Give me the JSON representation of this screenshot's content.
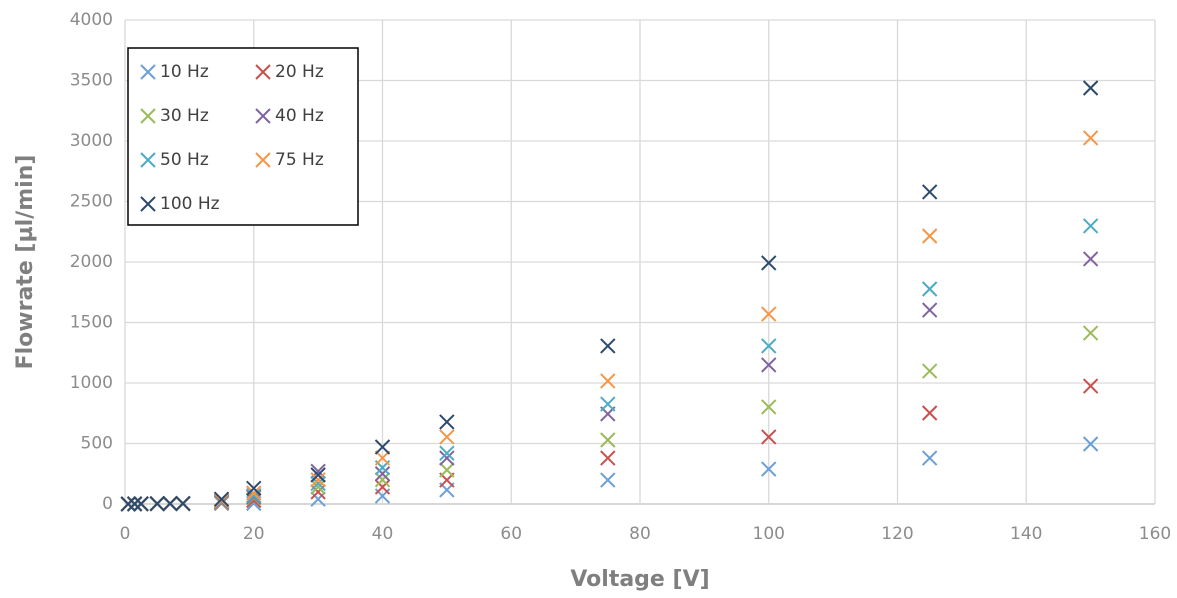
{
  "chart_data": {
    "type": "scatter",
    "x_label": "Voltage [V]",
    "y_label": "Flowrate [µl/min]",
    "x": [
      0.5,
      1.5,
      2.5,
      5,
      7,
      9,
      15,
      20,
      30,
      40,
      50,
      75,
      100,
      125,
      150
    ],
    "series": [
      {
        "name": "10 Hz",
        "color": "#6a9fd8",
        "values": [
          0,
          0,
          0,
          1,
          1,
          1,
          5,
          5,
          40,
          66,
          116,
          198,
          289,
          380,
          496
        ]
      },
      {
        "name": "20 Hz",
        "color": "#c9504d",
        "values": [
          0,
          0,
          0,
          1,
          1,
          2,
          10,
          30,
          100,
          140,
          198,
          380,
          554,
          752,
          975
        ]
      },
      {
        "name": "30 Hz",
        "color": "#9bbb59",
        "values": [
          0,
          0,
          1,
          1,
          2,
          2,
          15,
          50,
          140,
          200,
          281,
          529,
          802,
          1099,
          1413
        ]
      },
      {
        "name": "40 Hz",
        "color": "#8064a2",
        "values": [
          0,
          0,
          1,
          2,
          2,
          3,
          20,
          60,
          270,
          250,
          380,
          744,
          1149,
          1603,
          2025
        ]
      },
      {
        "name": "50 Hz",
        "color": "#4bacc6",
        "values": [
          0,
          1,
          1,
          2,
          3,
          3,
          25,
          70,
          170,
          300,
          420,
          826,
          1306,
          1777,
          2298
        ]
      },
      {
        "name": "75 Hz",
        "color": "#f79646",
        "values": [
          0,
          1,
          1,
          2,
          3,
          4,
          30,
          90,
          200,
          380,
          554,
          1017,
          1570,
          2215,
          3025
        ]
      },
      {
        "name": "100 Hz",
        "color": "#2c4a6e",
        "values": [
          0,
          1,
          2,
          3,
          4,
          5,
          40,
          130,
          240,
          471,
          678,
          1306,
          1992,
          2579,
          3438
        ]
      }
    ],
    "xlim": [
      0,
      160
    ],
    "xticks": [
      0,
      20,
      40,
      60,
      80,
      100,
      120,
      140,
      160
    ],
    "ylim": [
      0,
      4000
    ],
    "yticks": [
      0,
      500,
      1000,
      1500,
      2000,
      2500,
      3000,
      3500,
      4000
    ],
    "grid": true,
    "legend": "upper left"
  }
}
